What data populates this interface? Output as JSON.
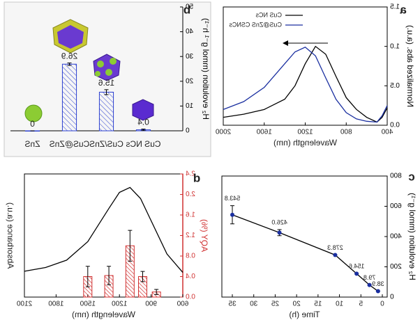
{
  "chart_data": [
    {
      "type": "line",
      "panel_label": "a",
      "xlabel": "Wavelength (nm)",
      "ylabel": "Normalized abs. (a.u.)",
      "x": [
        400,
        450,
        500,
        600,
        700,
        800,
        900,
        1000,
        1100,
        1200,
        1300,
        1400,
        1600,
        1800,
        2000
      ],
      "xlim": [
        400,
        2000
      ],
      "xticks": [
        400,
        800,
        1200,
        1600,
        2000
      ],
      "ylim": [
        0,
        1.5
      ],
      "yticks": [
        {
          "value": 0,
          "label": "0.0"
        },
        0.5,
        {
          "value": 1,
          "label": "1.0"
        },
        1.5
      ],
      "series": [
        {
          "name": "CuS NCs",
          "color": "#000000",
          "values": [
            0.22,
            0.1,
            0.04,
            0.1,
            0.2,
            0.35,
            0.62,
            0.9,
            1.0,
            0.78,
            0.5,
            0.33,
            0.2,
            0.14,
            0.1
          ]
        },
        {
          "name": "CuS@ZnS CSNCs",
          "color": "#1a2fa0",
          "values": [
            0.25,
            0.12,
            0.04,
            0.05,
            0.08,
            0.16,
            0.33,
            0.6,
            0.88,
            0.99,
            0.93,
            0.78,
            0.48,
            0.3,
            0.2
          ]
        }
      ]
    },
    {
      "type": "bar",
      "panel_label": "b",
      "ylabel": "H₂ evolution (mmol g⁻¹ h⁻¹)",
      "categories": [
        "CuS NCs",
        "CuS/ZnS",
        "CuS@ZnS",
        "ZnS"
      ],
      "values": [
        0.4,
        15.6,
        26.9,
        0
      ],
      "errors": [
        0.3,
        1,
        0.5,
        0
      ],
      "color": "#2b3fd0",
      "ylim": [
        0,
        50
      ],
      "yticks": [
        0,
        10,
        20,
        30,
        40,
        50
      ]
    },
    {
      "type": "line",
      "panel_label": "c",
      "xlabel": "Time (h)",
      "ylabel": "H₂ evolution (mmol g⁻¹)",
      "x": [
        1,
        3,
        6,
        11,
        24,
        35
      ],
      "xlim": [
        0,
        35
      ],
      "xticks": [
        0,
        5,
        10,
        15,
        20,
        25,
        30,
        35
      ],
      "ylim": [
        0,
        800
      ],
      "yticks": [
        0,
        200,
        400,
        600,
        800
      ],
      "series": [
        {
          "color": "#1a2fa0",
          "line_color": "#000000",
          "markers": true,
          "values": [
            38.9,
            79.8,
            154.6,
            278.3,
            426,
            543.8
          ],
          "errors": [
            0,
            0,
            0,
            0,
            20,
            60
          ],
          "value_labels": [
            "38.9",
            "79.8",
            "154.6",
            "278.3",
            "426.0",
            "543.8"
          ]
        }
      ]
    },
    {
      "type": "bar",
      "panel_label": "d",
      "xlabel": "Wavelength (nm)",
      "ylabel": "AQY (%)",
      "y2label": "Absorbance (a.u.)",
      "yaxis_color": "#d03030",
      "xlim": [
        600,
        2100
      ],
      "xticks": [
        600,
        900,
        1200,
        1500,
        1800,
        2100
      ],
      "ylim": [
        0,
        2.4
      ],
      "yticks": [
        {
          "value": 0,
          "label": "0.0"
        },
        0.4,
        0.8,
        1.2,
        1.6,
        {
          "value": 2,
          "label": "2.0"
        },
        2.4
      ],
      "y2lim": [
        0,
        1
      ],
      "series": [
        {
          "type": "bar",
          "color": "#d03030",
          "x": [
            850,
            980,
            1100,
            1300,
            1500
          ],
          "values": [
            0.1,
            0.4,
            1.0,
            0.42,
            0.4
          ],
          "errors": [
            0.05,
            0.1,
            0.3,
            0.18,
            0.2
          ]
        },
        {
          "type": "line",
          "axis": "y2",
          "color": "#000000",
          "x": [
            600,
            750,
            900,
            1000,
            1100,
            1200,
            1300,
            1500,
            1700,
            1900,
            2100
          ],
          "values": [
            0.2,
            0.35,
            0.62,
            0.8,
            0.89,
            0.85,
            0.72,
            0.45,
            0.3,
            0.24,
            0.21
          ]
        }
      ]
    }
  ]
}
